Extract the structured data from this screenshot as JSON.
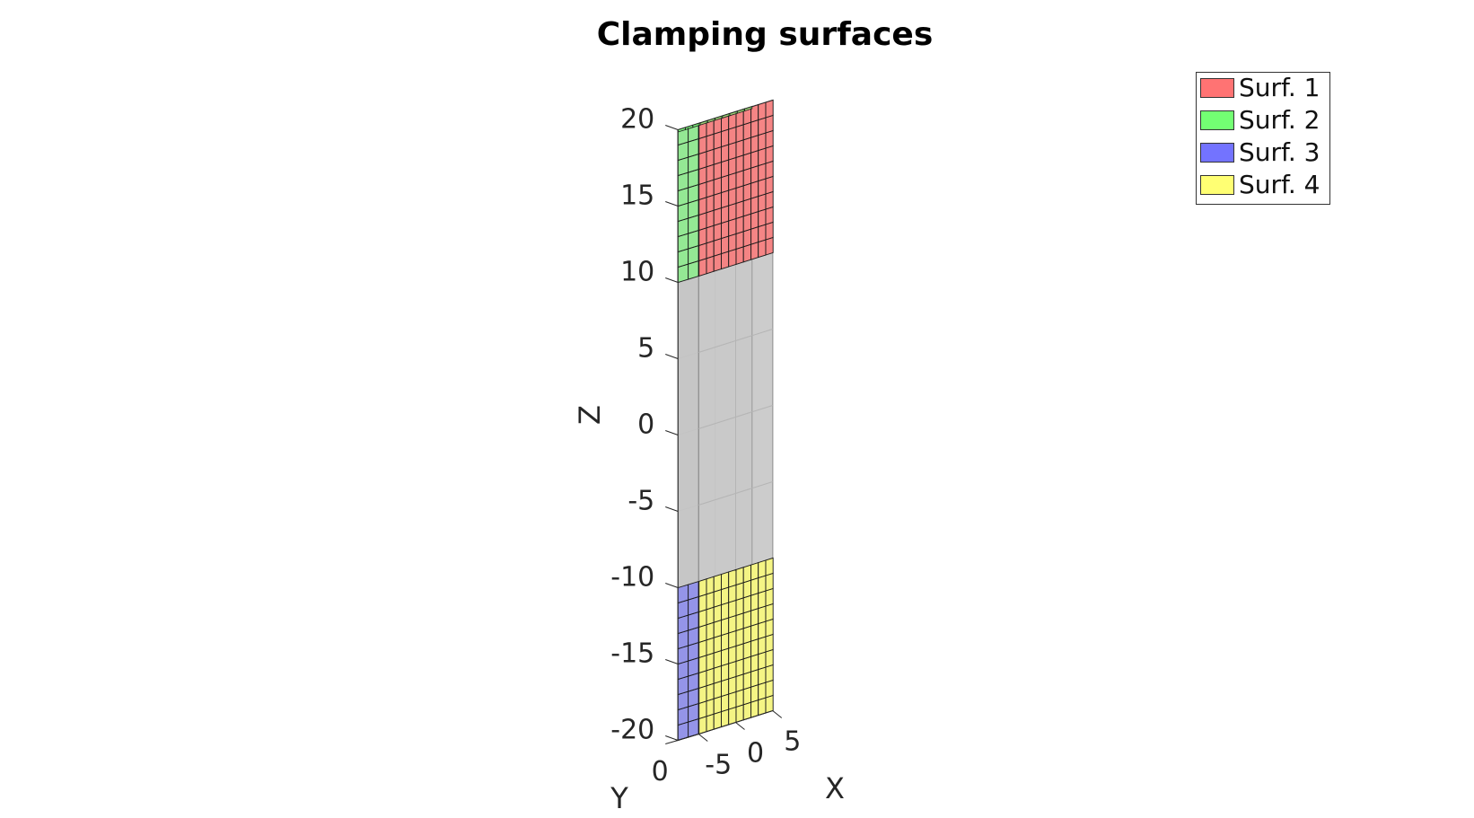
{
  "chart_data": {
    "type": "3d-surface",
    "title": "Clamping surfaces",
    "xlabel": "X",
    "ylabel": "Y",
    "zlabel": "Z",
    "xlim": [
      -5,
      5
    ],
    "ylim": [
      -0.5,
      0.5
    ],
    "zlim": [
      -20,
      20
    ],
    "xticks": [
      "-5",
      "0",
      "5"
    ],
    "yticks": [
      "0"
    ],
    "zticks": [
      "20",
      "15",
      "10",
      "5",
      "0",
      "-5",
      "-10",
      "-15",
      "-20"
    ],
    "zticks_values": [
      20,
      15,
      10,
      5,
      0,
      -5,
      -10,
      -15,
      -20
    ],
    "body": {
      "x": [
        -5,
        5
      ],
      "y": [
        -0.5,
        0.5
      ],
      "z": [
        -20,
        20
      ],
      "color": "#c0c0c0"
    },
    "surfaces": [
      {
        "name": "Surf. 1",
        "face": "front",
        "x": [
          -5,
          5
        ],
        "z": [
          10,
          20
        ],
        "color": "#ff7373"
      },
      {
        "name": "Surf. 2",
        "face": "left",
        "y": [
          -0.5,
          0.5
        ],
        "z": [
          10,
          20
        ],
        "color": "#73ff73"
      },
      {
        "name": "Surf. 3",
        "face": "left",
        "y": [
          -0.5,
          0.5
        ],
        "z": [
          -20,
          -10
        ],
        "color": "#7373ff"
      },
      {
        "name": "Surf. 4",
        "face": "front",
        "x": [
          -5,
          5
        ],
        "z": [
          -20,
          -10
        ],
        "color": "#ffff73"
      }
    ],
    "legend_position": "top-right",
    "grid": true
  }
}
